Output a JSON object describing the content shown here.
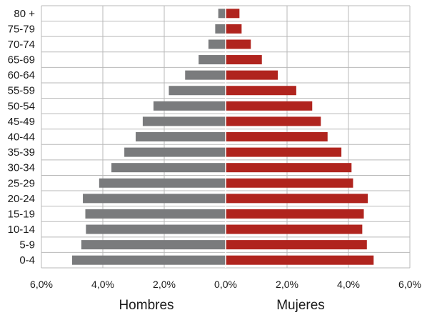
{
  "chart_data": {
    "type": "bar",
    "orientation": "horizontal",
    "layout": "population-pyramid",
    "categories": [
      "0-4",
      "5-9",
      "10-14",
      "15-19",
      "20-24",
      "25-29",
      "30-34",
      "35-39",
      "40-44",
      "45-49",
      "50-54",
      "55-59",
      "60-64",
      "65-69",
      "70-74",
      "75-79",
      "80 +"
    ],
    "series": [
      {
        "name": "Hombres",
        "color": "#7a7b7d",
        "values": [
          5.0,
          4.7,
          4.55,
          4.57,
          4.65,
          4.12,
          3.72,
          3.3,
          2.93,
          2.7,
          2.35,
          1.85,
          1.32,
          0.88,
          0.56,
          0.34,
          0.24
        ]
      },
      {
        "name": "Mujeres",
        "color": "#b0241e",
        "values": [
          4.82,
          4.6,
          4.45,
          4.5,
          4.63,
          4.15,
          4.1,
          3.77,
          3.32,
          3.1,
          2.82,
          2.3,
          1.7,
          1.18,
          0.82,
          0.52,
          0.45
        ]
      }
    ],
    "xlim": [
      -6,
      6
    ],
    "xticks": [
      "6,0%",
      "4,0%",
      "2,0%",
      "0,0%",
      "2,0%",
      "4,0%",
      "6,0%"
    ],
    "grid": true,
    "legend": "none"
  }
}
